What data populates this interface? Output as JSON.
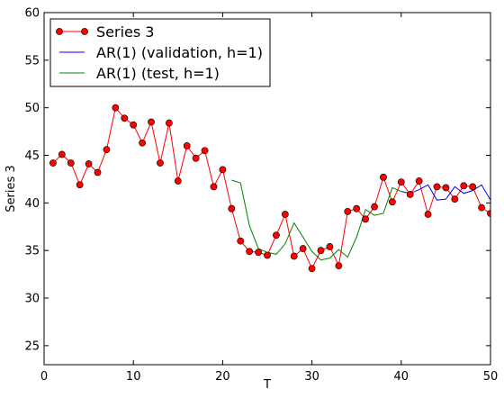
{
  "chart_data": {
    "type": "line",
    "title": "",
    "xlabel": "T",
    "ylabel": "Series 3",
    "xlim": [
      0,
      50
    ],
    "ylim": [
      23,
      60
    ],
    "xticks": [
      0,
      10,
      20,
      30,
      40,
      50
    ],
    "yticks": [
      25,
      30,
      35,
      40,
      45,
      50,
      55,
      60
    ],
    "grid": false,
    "legend_position": "top-left",
    "series": [
      {
        "name": "Series 3",
        "color": "#ff0000",
        "marker": "circle",
        "x": [
          1,
          2,
          3,
          4,
          5,
          6,
          7,
          8,
          9,
          10,
          11,
          12,
          13,
          14,
          15,
          16,
          17,
          18,
          19,
          20,
          21,
          22,
          23,
          24,
          25,
          26,
          27,
          28,
          29,
          30,
          31,
          32,
          33,
          34,
          35,
          36,
          37,
          38,
          39,
          40,
          41,
          42,
          43,
          44,
          45,
          46,
          47,
          48,
          49,
          50
        ],
        "y": [
          44.2,
          45.1,
          44.2,
          41.9,
          44.1,
          43.2,
          45.6,
          50.0,
          48.9,
          48.2,
          46.3,
          48.5,
          44.2,
          48.4,
          42.3,
          46.0,
          44.7,
          45.5,
          41.7,
          43.5,
          39.4,
          36.0,
          34.9,
          34.8,
          34.5,
          36.6,
          38.8,
          34.4,
          35.2,
          33.1,
          35.0,
          35.4,
          33.4,
          39.1,
          39.4,
          38.3,
          39.6,
          42.7,
          40.1,
          42.2,
          40.9,
          42.3,
          38.8,
          41.7,
          41.6,
          40.4,
          41.8,
          41.7,
          39.5,
          38.9
        ]
      },
      {
        "name": "AR(1) (validation, h=1)",
        "color": "#0000ff",
        "marker": "none",
        "x": [
          40,
          41,
          42,
          43,
          44,
          45,
          46,
          47,
          48,
          49,
          50
        ],
        "y": [
          41.2,
          41.0,
          41.4,
          41.9,
          40.3,
          40.4,
          41.7,
          41.0,
          41.3,
          41.9,
          40.3
        ]
      },
      {
        "name": "AR(1) (test, h=1)",
        "color": "#008000",
        "marker": "none",
        "x": [
          21,
          22,
          23,
          24,
          25,
          26,
          27,
          28,
          29,
          30,
          31,
          32,
          33,
          34,
          35,
          36,
          37,
          38,
          39,
          40
        ],
        "y": [
          42.4,
          42.1,
          37.6,
          35.2,
          34.8,
          34.6,
          35.7,
          37.9,
          36.4,
          34.9,
          34.0,
          34.2,
          35.1,
          34.3,
          36.4,
          39.3,
          38.7,
          38.9,
          41.6,
          41.2
        ]
      }
    ]
  }
}
